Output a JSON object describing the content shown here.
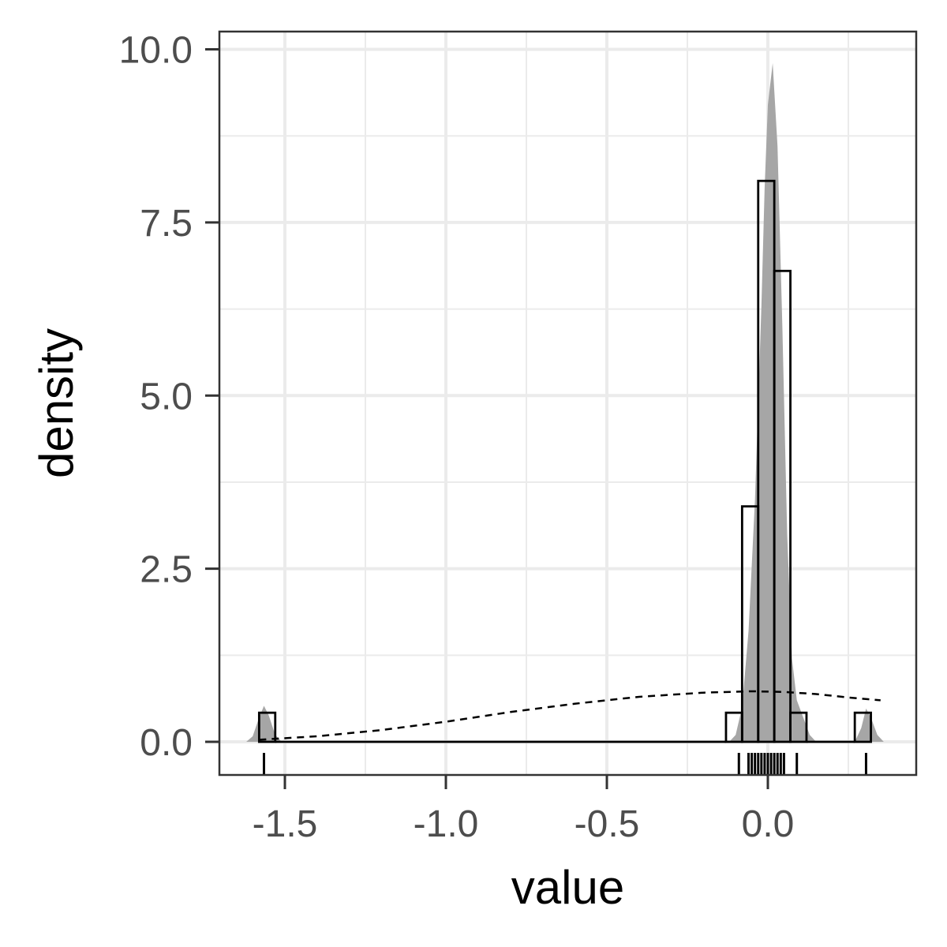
{
  "chart_data": {
    "type": "histogram",
    "xlabel": "value",
    "ylabel": "density",
    "xlim": [
      -1.7,
      0.45
    ],
    "ylim": [
      -0.5,
      10.3
    ],
    "x_ticks": [
      {
        "value": -1.5,
        "label": "-1.5"
      },
      {
        "value": -1.0,
        "label": "-1.0"
      },
      {
        "value": -0.5,
        "label": "-0.5"
      },
      {
        "value": 0.0,
        "label": "0.0"
      }
    ],
    "y_ticks": [
      {
        "value": 0.0,
        "label": "0.0"
      },
      {
        "value": 2.5,
        "label": "2.5"
      },
      {
        "value": 5.0,
        "label": "5.0"
      },
      {
        "value": 7.5,
        "label": "7.5"
      },
      {
        "value": 10.0,
        "label": "10.0"
      }
    ],
    "x_minor_breaks": [
      -1.25,
      -0.75,
      -0.25,
      0.25
    ],
    "y_minor_breaks": [
      1.25,
      3.75,
      6.25,
      8.75
    ],
    "grid": true,
    "histogram_bins": [
      {
        "x0": -1.58,
        "x1": -1.53,
        "density": 0.42
      },
      {
        "x0": -1.53,
        "x1": -0.13,
        "density": 0.0
      },
      {
        "x0": -0.13,
        "x1": -0.08,
        "density": 0.42
      },
      {
        "x0": -0.08,
        "x1": -0.03,
        "density": 3.4
      },
      {
        "x0": -0.03,
        "x1": 0.02,
        "density": 8.1
      },
      {
        "x0": 0.02,
        "x1": 0.07,
        "density": 6.8
      },
      {
        "x0": 0.07,
        "x1": 0.12,
        "density": 0.42
      },
      {
        "x0": 0.12,
        "x1": 0.27,
        "density": 0.0
      },
      {
        "x0": 0.27,
        "x1": 0.32,
        "density": 0.42
      }
    ],
    "kde_density": [
      [
        -1.62,
        0.0
      ],
      [
        -1.6,
        0.08
      ],
      [
        -1.58,
        0.35
      ],
      [
        -1.565,
        0.52
      ],
      [
        -1.55,
        0.38
      ],
      [
        -1.53,
        0.1
      ],
      [
        -1.51,
        0.0
      ],
      [
        -0.12,
        0.0
      ],
      [
        -0.1,
        0.1
      ],
      [
        -0.08,
        0.5
      ],
      [
        -0.06,
        1.6
      ],
      [
        -0.04,
        3.5
      ],
      [
        -0.02,
        6.3
      ],
      [
        -0.01,
        8.0
      ],
      [
        0.0,
        9.2
      ],
      [
        0.015,
        9.8
      ],
      [
        0.03,
        8.6
      ],
      [
        0.045,
        6.0
      ],
      [
        0.06,
        3.0
      ],
      [
        0.075,
        1.2
      ],
      [
        0.09,
        0.6
      ],
      [
        0.11,
        0.35
      ],
      [
        0.13,
        0.1
      ],
      [
        0.15,
        0.0
      ],
      [
        0.27,
        0.0
      ],
      [
        0.29,
        0.2
      ],
      [
        0.305,
        0.48
      ],
      [
        0.32,
        0.35
      ],
      [
        0.34,
        0.1
      ],
      [
        0.36,
        0.0
      ]
    ],
    "normal_curve": [
      [
        -1.58,
        0.03
      ],
      [
        -1.4,
        0.08
      ],
      [
        -1.2,
        0.17
      ],
      [
        -1.0,
        0.29
      ],
      [
        -0.8,
        0.43
      ],
      [
        -0.6,
        0.55
      ],
      [
        -0.4,
        0.65
      ],
      [
        -0.2,
        0.71
      ],
      [
        -0.05,
        0.73
      ],
      [
        0.05,
        0.72
      ],
      [
        0.15,
        0.69
      ],
      [
        0.25,
        0.64
      ],
      [
        0.35,
        0.6
      ]
    ],
    "rug": [
      -1.565,
      -0.09,
      -0.06,
      -0.05,
      -0.04,
      -0.03,
      -0.02,
      -0.01,
      0.0,
      0.01,
      0.02,
      0.03,
      0.04,
      0.05,
      0.09,
      0.305
    ],
    "colors": {
      "density_fill": "#a6a6a6",
      "gridline": "#ebebeb",
      "panel_border": "#333333"
    }
  }
}
